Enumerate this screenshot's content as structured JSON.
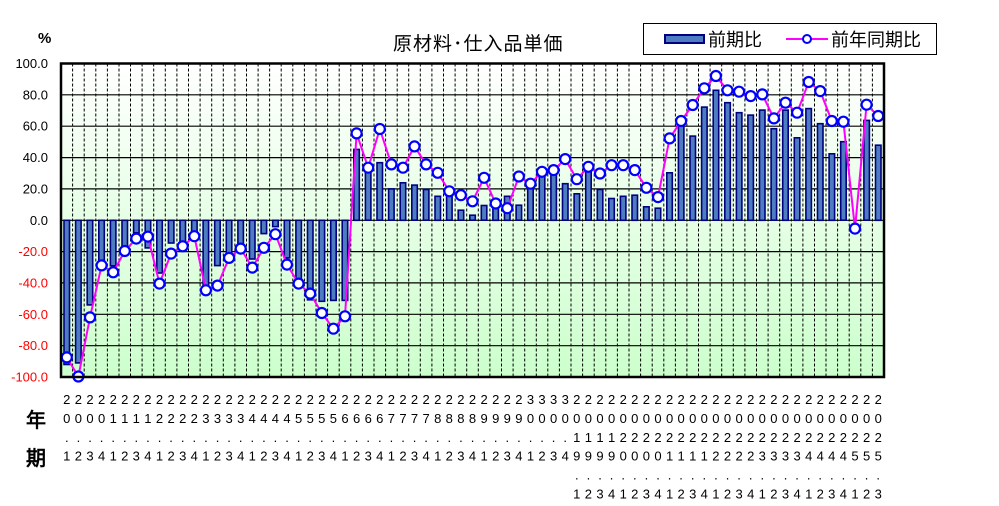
{
  "header": {
    "unit": "%",
    "title": "原材料･仕入品単価"
  },
  "legend": {
    "bar_label": "前期比",
    "line_label": "前年同期比"
  },
  "axis_row_labels": {
    "year": "年",
    "period": "期"
  },
  "colors": {
    "bar_fill": "#4d7dc0",
    "bar_border": "#000080",
    "line": "#ff00ff",
    "marker_border": "#0000ff",
    "marker_fill": "#ffffff",
    "plot_bg_top": "#ffffff",
    "plot_bg_bottom": "#ccffcc",
    "positive_tick": "#000000",
    "negative_tick": "#ff0000"
  },
  "chart_data": {
    "type": "bar",
    "title": "原材料･仕入品単価",
    "xlabel": "年 / 期",
    "ylabel": "%",
    "ylim": [
      -100,
      100
    ],
    "yticks": [
      100,
      80,
      60,
      40,
      20,
      0,
      -20,
      -40,
      -60,
      -80,
      -100
    ],
    "grid": true,
    "legend_position": "top-right",
    "categories": [
      "20.1",
      "20.2",
      "20.3",
      "20.4",
      "21.1",
      "21.2",
      "21.3",
      "21.4",
      "22.1",
      "22.2",
      "22.3",
      "22.4",
      "23.1",
      "23.2",
      "23.3",
      "23.4",
      "24.1",
      "24.2",
      "24.3",
      "24.4",
      "25.1",
      "25.2",
      "25.3",
      "25.4",
      "26.1",
      "26.2",
      "26.3",
      "26.4",
      "27.1",
      "27.2",
      "27.3",
      "27.4",
      "28.1",
      "28.2",
      "28.3",
      "28.4",
      "29.1",
      "29.2",
      "29.3",
      "29.4",
      "30.1",
      "30.2",
      "30.3",
      "30.4",
      "2019.1",
      "2019.2",
      "2019.3",
      "2019.4",
      "2020.1",
      "2020.2",
      "2020.3",
      "2020.4",
      "2021.1",
      "2021.2",
      "2021.3",
      "2021.4",
      "2022.1",
      "2022.2",
      "2022.3",
      "2022.4",
      "2023.1",
      "2023.2",
      "2023.3",
      "2023.4",
      "2024.1",
      "2024.2",
      "2024.3",
      "2024.4",
      "2025.1",
      "2025.2",
      "2025.3"
    ],
    "series": [
      {
        "name": "前期比",
        "type": "bar",
        "values": [
          -92.0,
          -91.0,
          -54.0,
          -26.5,
          -29.0,
          -18.0,
          -8.0,
          -17.6,
          -33.6,
          -14.5,
          -16.6,
          -7.0,
          -43.2,
          -28.9,
          -22.0,
          -16.6,
          -24.7,
          -8.5,
          -4.0,
          -24.0,
          -39.0,
          -50.7,
          -51.7,
          -51.1,
          -51.1,
          45.2,
          33.0,
          36.7,
          20.0,
          23.9,
          22.4,
          19.6,
          15.3,
          16.4,
          6.4,
          3.2,
          9.4,
          7.9,
          15.3,
          9.6,
          22.0,
          28.1,
          30.3,
          23.3,
          16.9,
          33.5,
          19.6,
          13.9,
          15.3,
          16.0,
          8.6,
          7.7,
          30.3,
          61.0,
          53.7,
          72.2,
          82.9,
          75.0,
          68.6,
          67.1,
          70.3,
          58.4,
          70.3,
          52.6,
          71.2,
          61.6,
          42.4,
          50.1,
          0.0,
          63.7,
          47.9
        ]
      },
      {
        "name": "前年同期比",
        "type": "line",
        "values": [
          -87.5,
          -99.7,
          -62.0,
          -28.8,
          -33.2,
          -19.6,
          -11.7,
          -10.4,
          -40.4,
          -21.3,
          -16.6,
          -10.2,
          -44.7,
          -41.7,
          -24.0,
          -18.1,
          -30.2,
          -17.6,
          -8.9,
          -28.3,
          -40.4,
          -46.8,
          -59.2,
          -69.2,
          -61.3,
          55.4,
          33.5,
          58.2,
          35.6,
          33.5,
          47.1,
          35.6,
          30.3,
          18.5,
          16.0,
          12.1,
          27.1,
          10.7,
          7.7,
          27.9,
          23.3,
          30.9,
          32.0,
          39.0,
          26.2,
          34.1,
          29.8,
          35.1,
          35.1,
          32.0,
          20.7,
          14.8,
          52.2,
          63.3,
          73.5,
          84.2,
          92.0,
          82.9,
          82.0,
          79.2,
          80.3,
          65.0,
          75.0,
          68.6,
          88.2,
          82.4,
          63.3,
          62.9,
          -5.3,
          73.7,
          66.5
        ]
      }
    ]
  }
}
